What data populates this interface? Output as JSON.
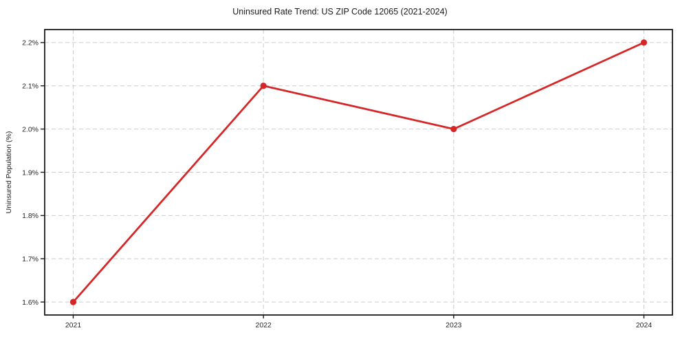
{
  "figure": {
    "background": "#ffffff"
  },
  "chart_data": {
    "type": "line",
    "title": "Uninsured Rate Trend: US ZIP Code 12065 (2021-2024)",
    "xlabel": "",
    "ylabel": "Uninsured Population (%)",
    "x": [
      2021,
      2022,
      2023,
      2024
    ],
    "x_tick_labels": [
      "2021",
      "2022",
      "2023",
      "2024"
    ],
    "series": [
      {
        "name": "Uninsured Rate",
        "values": [
          1.6,
          2.1,
          2.0,
          2.2
        ]
      }
    ],
    "y_ticks": [
      1.6,
      1.7,
      1.8,
      1.9,
      2.0,
      2.1,
      2.2
    ],
    "y_tick_suffix": "%",
    "xlim": [
      2020.85,
      2024.15
    ],
    "ylim": [
      1.57,
      2.23
    ],
    "grid": true,
    "grid_style": "dashed",
    "legend": "none",
    "colors": {
      "line": "#d62728",
      "marker": "#d62728",
      "grid": "#cccccc",
      "axis": "#1a1a1a",
      "text": "#262626"
    }
  }
}
